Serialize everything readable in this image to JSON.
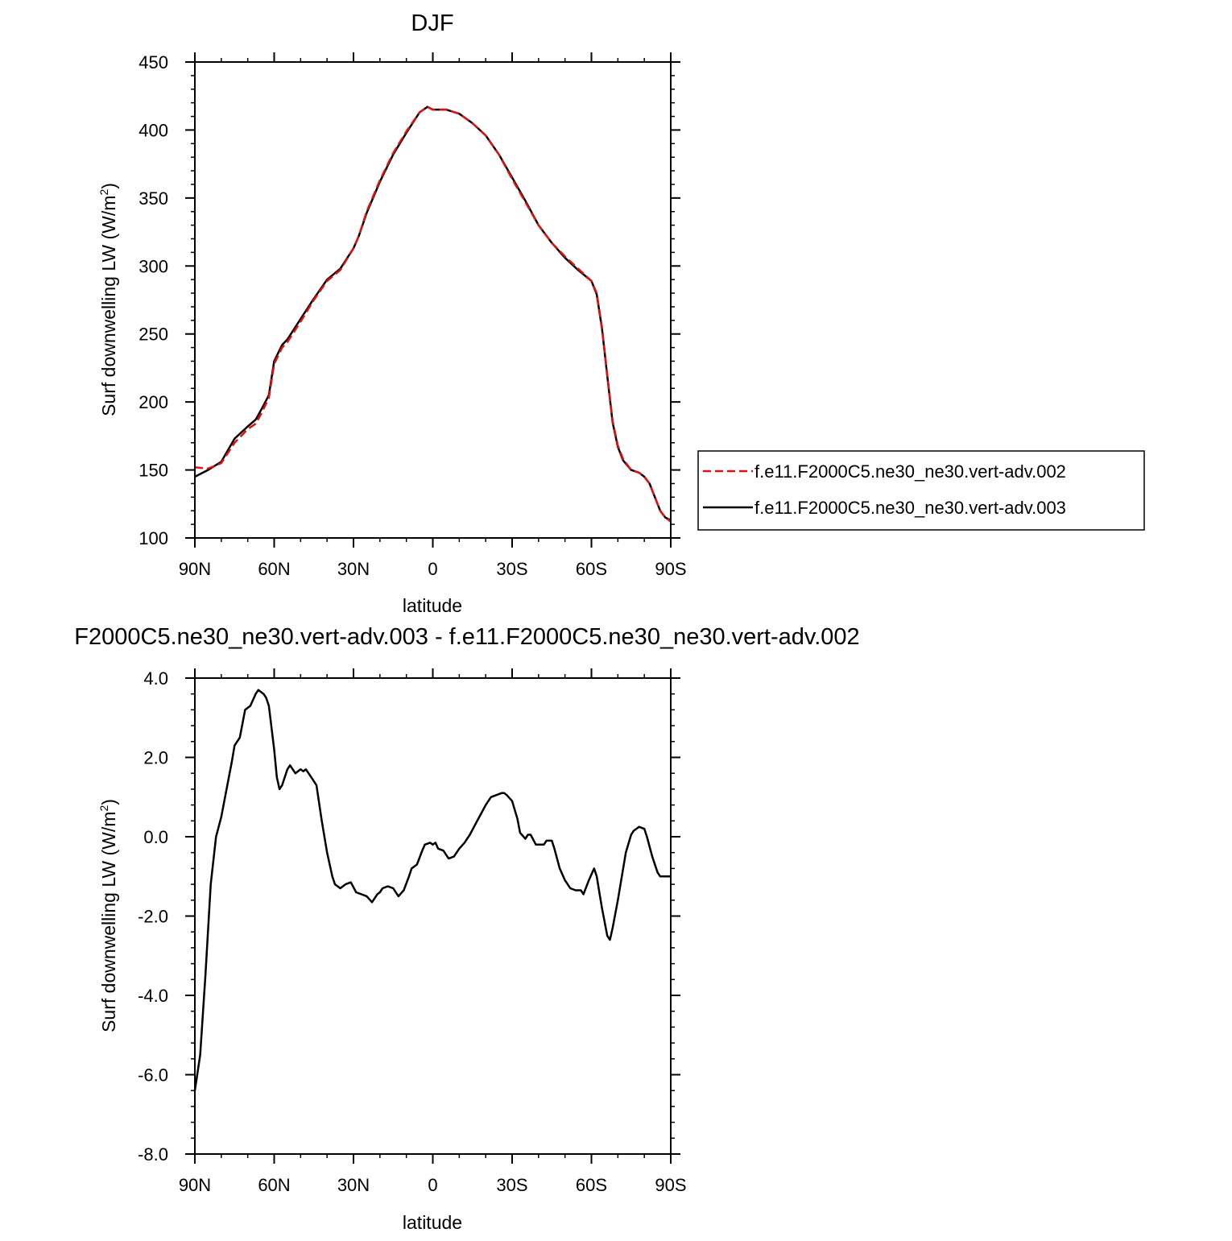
{
  "chart_data": [
    {
      "type": "line",
      "title": "DJF",
      "xlabel": "latitude",
      "ylabel": "Surf downwelling LW (W/m",
      "ylabel_sup": "2",
      "ylabel_close": ")",
      "xlim": [
        90,
        -90
      ],
      "ylim": [
        100,
        450
      ],
      "xticks": [
        {
          "value": 90,
          "label": "90N"
        },
        {
          "value": 60,
          "label": "60N"
        },
        {
          "value": 30,
          "label": "30N"
        },
        {
          "value": 0,
          "label": "0"
        },
        {
          "value": -30,
          "label": "30S"
        },
        {
          "value": -60,
          "label": "60S"
        },
        {
          "value": -90,
          "label": "90S"
        }
      ],
      "yticks": [
        {
          "value": 100,
          "label": "100"
        },
        {
          "value": 150,
          "label": "150"
        },
        {
          "value": 200,
          "label": "200"
        },
        {
          "value": 250,
          "label": "250"
        },
        {
          "value": 300,
          "label": "300"
        },
        {
          "value": 350,
          "label": "350"
        },
        {
          "value": 400,
          "label": "400"
        },
        {
          "value": 450,
          "label": "450"
        }
      ],
      "legend_position": "right",
      "series": [
        {
          "name": "f.e11.F2000C5.ne30_ne30.vert-adv.002",
          "color": "#e01010",
          "dash": "dashed",
          "x": [
            90,
            85,
            80,
            75,
            70,
            67,
            65,
            62,
            60,
            57,
            55,
            50,
            45,
            40,
            35,
            30,
            28,
            25,
            20,
            15,
            10,
            5,
            2,
            0,
            -5,
            -10,
            -15,
            -20,
            -25,
            -30,
            -35,
            -40,
            -45,
            -50,
            -55,
            -60,
            -62,
            -64,
            -66,
            -68,
            -70,
            -72,
            -75,
            -78,
            -80,
            -82,
            -84,
            -86,
            -88,
            -90
          ],
          "y": [
            152,
            151,
            155,
            170,
            180,
            184,
            191,
            203,
            228,
            240,
            244,
            259,
            275,
            289,
            297,
            313,
            322,
            340,
            363,
            383,
            399,
            413,
            417,
            415,
            415,
            412,
            405,
            396,
            382,
            364,
            347,
            330,
            317,
            307,
            298,
            289,
            280,
            255,
            220,
            186,
            168,
            158,
            150,
            148,
            145,
            140,
            130,
            120,
            115,
            112
          ]
        },
        {
          "name": "f.e11.F2000C5.ne30_ne30.vert-adv.003",
          "color": "#000000",
          "dash": "solid",
          "x": [
            90,
            85,
            80,
            75,
            70,
            67,
            65,
            62,
            60,
            57,
            55,
            50,
            45,
            40,
            35,
            30,
            28,
            25,
            20,
            15,
            10,
            5,
            2,
            0,
            -5,
            -10,
            -15,
            -20,
            -25,
            -30,
            -35,
            -40,
            -45,
            -50,
            -55,
            -60,
            -62,
            -64,
            -66,
            -68,
            -70,
            -72,
            -75,
            -78,
            -80,
            -82,
            -84,
            -86,
            -88,
            -90
          ],
          "y": [
            145,
            150,
            156,
            173,
            182,
            187,
            194,
            205,
            230,
            242,
            246,
            261,
            276,
            290,
            298,
            313,
            322,
            339,
            362,
            382,
            398,
            413,
            417,
            415,
            415,
            412,
            405,
            396,
            382,
            365,
            348,
            330,
            317,
            306,
            297,
            289,
            279,
            254,
            219,
            185,
            167,
            157,
            150,
            148,
            145,
            140,
            130,
            120,
            115,
            113
          ]
        }
      ]
    },
    {
      "type": "line",
      "title": "F2000C5.ne30_ne30.vert-adv.003 - f.e11.F2000C5.ne30_ne30.vert-adv.002",
      "xlabel": "latitude",
      "ylabel": "Surf downwelling LW (W/m",
      "ylabel_sup": "2",
      "ylabel_close": ")",
      "xlim": [
        90,
        -90
      ],
      "ylim": [
        -8,
        4
      ],
      "xticks": [
        {
          "value": 90,
          "label": "90N"
        },
        {
          "value": 60,
          "label": "60N"
        },
        {
          "value": 30,
          "label": "30N"
        },
        {
          "value": 0,
          "label": "0"
        },
        {
          "value": -30,
          "label": "30S"
        },
        {
          "value": -60,
          "label": "60S"
        },
        {
          "value": -90,
          "label": "90S"
        }
      ],
      "yticks": [
        {
          "value": 4,
          "label": "4.0"
        },
        {
          "value": 2,
          "label": "2.0"
        },
        {
          "value": 0,
          "label": "0.0"
        },
        {
          "value": -2,
          "label": "-2.0"
        },
        {
          "value": -4,
          "label": "-4.0"
        },
        {
          "value": -6,
          "label": "-6.0"
        },
        {
          "value": -8,
          "label": "-8.0"
        }
      ],
      "series": [
        {
          "name": "",
          "color": "#000000",
          "dash": "solid",
          "x": [
            90,
            88,
            86,
            84,
            82,
            80,
            78,
            76,
            75,
            73,
            71,
            69,
            67,
            66,
            64,
            63,
            62,
            60,
            59,
            58,
            57,
            56,
            55,
            54,
            52,
            50,
            49,
            48,
            46,
            44,
            42,
            40,
            38,
            37,
            35,
            33,
            31,
            29,
            27,
            25,
            23,
            21,
            20,
            19,
            17,
            15,
            13,
            11,
            9,
            8,
            6,
            4,
            3,
            1,
            0,
            -1,
            -2,
            -4,
            -5,
            -6,
            -8,
            -10,
            -12,
            -14,
            -16,
            -18,
            -20,
            -22,
            -24,
            -26,
            -27,
            -28,
            -30,
            -32,
            -33,
            -35,
            -36,
            -37,
            -39,
            -40,
            -42,
            -43,
            -45,
            -46,
            -48,
            -50,
            -51,
            -52,
            -54,
            -56,
            -57,
            -59,
            -61,
            -62,
            -63,
            -64,
            -66,
            -67,
            -68,
            -70,
            -71,
            -72,
            -73,
            -75,
            -76,
            -78,
            -80,
            -81,
            -83,
            -85,
            -86,
            -88,
            -89,
            -90
          ],
          "y": [
            -6.4,
            -5.5,
            -3.5,
            -1.2,
            0.0,
            0.5,
            1.2,
            1.9,
            2.3,
            2.5,
            3.2,
            3.3,
            3.6,
            3.7,
            3.6,
            3.5,
            3.3,
            2.2,
            1.5,
            1.2,
            1.3,
            1.5,
            1.7,
            1.8,
            1.6,
            1.7,
            1.65,
            1.7,
            1.5,
            1.3,
            0.4,
            -0.4,
            -1.0,
            -1.2,
            -1.3,
            -1.2,
            -1.15,
            -1.4,
            -1.45,
            -1.5,
            -1.65,
            -1.45,
            -1.4,
            -1.3,
            -1.25,
            -1.3,
            -1.5,
            -1.35,
            -1.0,
            -0.8,
            -0.7,
            -0.35,
            -0.2,
            -0.15,
            -0.2,
            -0.15,
            -0.3,
            -0.35,
            -0.45,
            -0.55,
            -0.5,
            -0.3,
            -0.15,
            0.05,
            0.3,
            0.55,
            0.8,
            1.0,
            1.05,
            1.1,
            1.1,
            1.05,
            0.9,
            0.45,
            0.1,
            -0.05,
            0.05,
            0.05,
            -0.2,
            -0.2,
            -0.2,
            -0.1,
            -0.1,
            -0.3,
            -0.8,
            -1.1,
            -1.2,
            -1.3,
            -1.35,
            -1.35,
            -1.45,
            -1.1,
            -0.8,
            -1.0,
            -1.4,
            -1.8,
            -2.5,
            -2.6,
            -2.3,
            -1.6,
            -1.2,
            -0.8,
            -0.4,
            0.05,
            0.15,
            0.25,
            0.2,
            0.0,
            -0.5,
            -0.9,
            -1.0,
            -1.0,
            -1.0,
            -1.0
          ]
        }
      ]
    }
  ]
}
